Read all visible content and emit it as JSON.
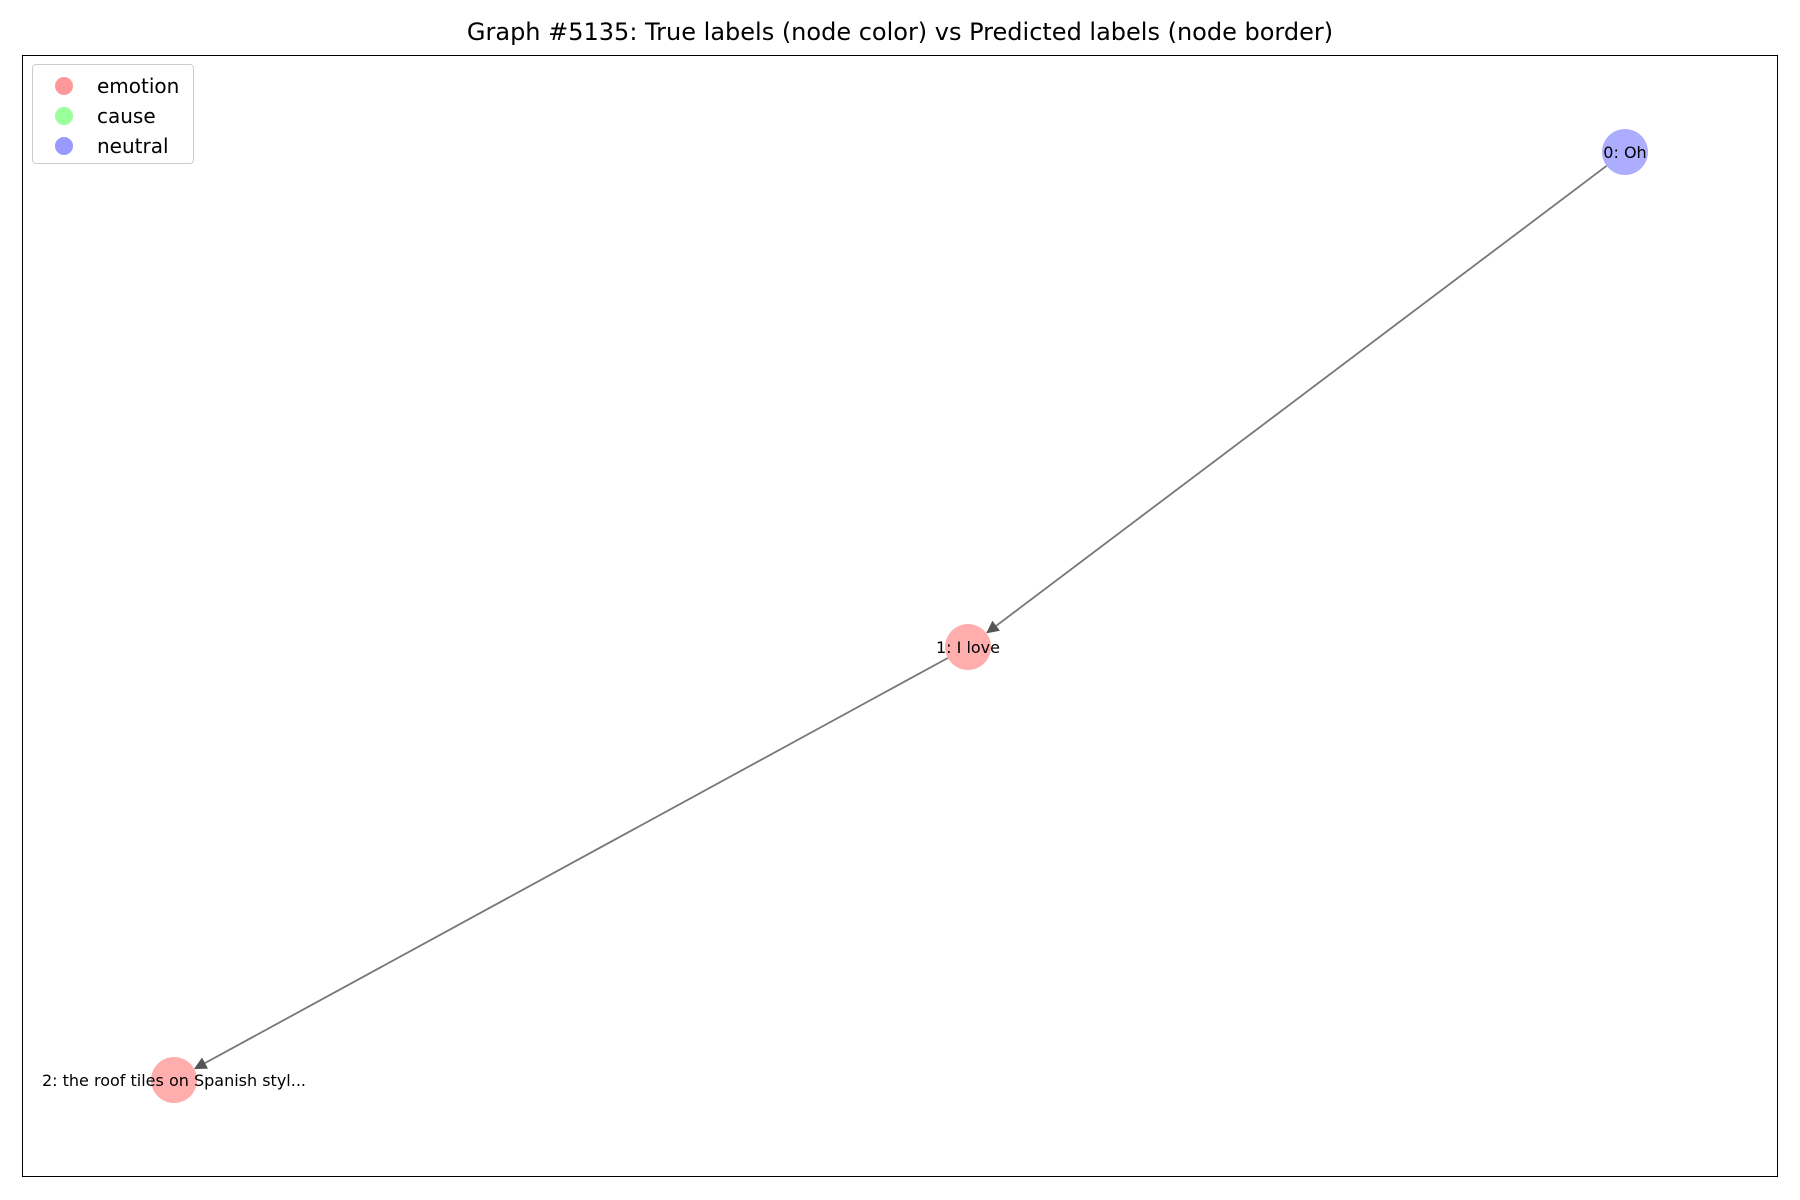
{
  "title": "Graph #5135: True labels (node color) vs Predicted labels (node border)",
  "legend": [
    {
      "label": "emotion",
      "color": "#ff9999"
    },
    {
      "label": "cause",
      "color": "#99ff99"
    },
    {
      "label": "neutral",
      "color": "#9999ff"
    }
  ],
  "nodes": [
    {
      "id": 0,
      "label": "0: Oh",
      "class": "neutral"
    },
    {
      "id": 1,
      "label": "1: I love",
      "class": "emotion"
    },
    {
      "id": 2,
      "label": "2: the roof tiles on Spanish styl...",
      "class": "emotion"
    }
  ],
  "edges": [
    {
      "from": 0,
      "to": 1
    },
    {
      "from": 1,
      "to": 2
    }
  ],
  "colors": {
    "edge": "#777777",
    "arrow": "#555555"
  }
}
